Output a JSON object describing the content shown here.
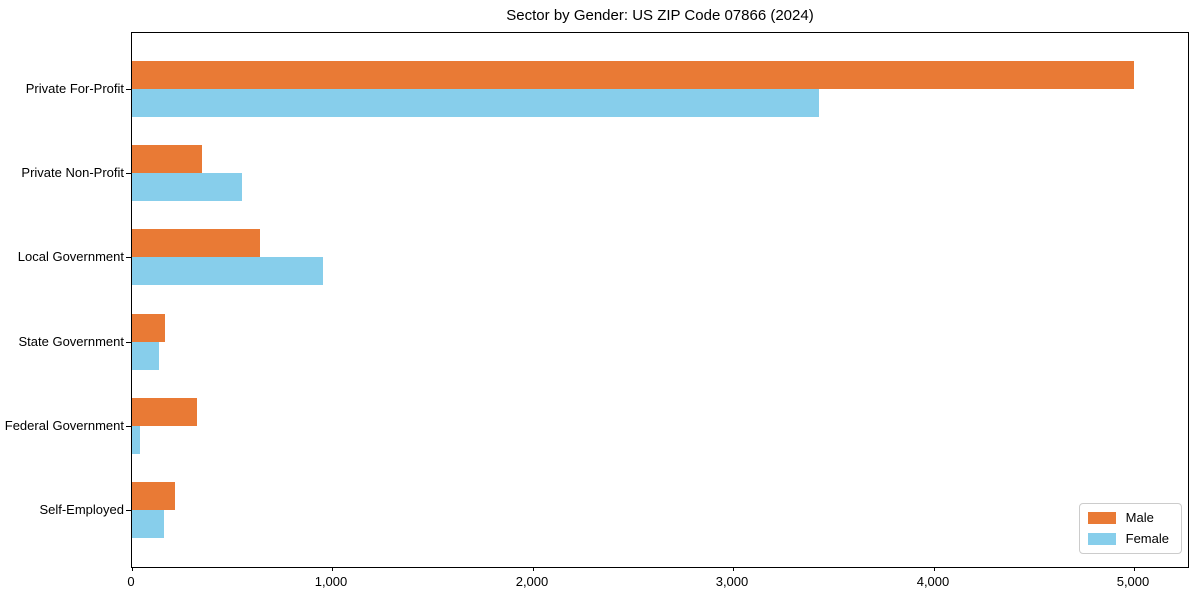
{
  "figure": {
    "background": "#ffffff"
  },
  "chart_data": {
    "type": "bar",
    "orientation": "horizontal",
    "title": "Sector by Gender: US ZIP Code 07866 (2024)",
    "xlabel": "",
    "ylabel": "",
    "categories": [
      "Private For-Profit",
      "Private Non-Profit",
      "Local Government",
      "State Government",
      "Federal Government",
      "Self-Employed"
    ],
    "series": [
      {
        "name": "Male",
        "color": "#E97A35",
        "values": [
          5000,
          350,
          640,
          165,
          325,
          215
        ]
      },
      {
        "name": "Female",
        "color": "#87CEEB",
        "values": [
          3430,
          550,
          955,
          135,
          40,
          160
        ]
      }
    ],
    "xlim": [
      0,
      5270
    ],
    "xticks": [
      0,
      1000,
      2000,
      3000,
      4000,
      5000
    ],
    "xtick_labels": [
      "0",
      "1,000",
      "2,000",
      "3,000",
      "4,000",
      "5,000"
    ],
    "grid": false,
    "legend": {
      "position": "lower right",
      "entries": [
        "Male",
        "Female"
      ]
    }
  }
}
